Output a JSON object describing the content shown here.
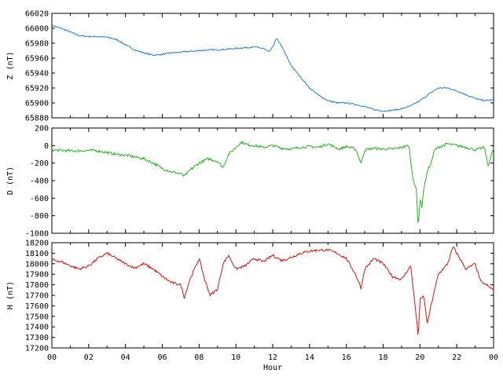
{
  "chart_data": [
    {
      "type": "line",
      "ylabel": "Z (nT)",
      "ylim": [
        65880,
        66020
      ],
      "yticks": [
        65880,
        65900,
        65920,
        65940,
        65960,
        65980,
        66000,
        66020
      ],
      "xlim": [
        0,
        24
      ],
      "color": "#1f7fdc",
      "series": [
        {
          "x": [
            0,
            0.5,
            1,
            1.5,
            2,
            2.5,
            3,
            3.5,
            4,
            4.5,
            5,
            5.5,
            6,
            6.5,
            7,
            7.5,
            8,
            8.5,
            9,
            9.5,
            10,
            10.5,
            11,
            11.5,
            11.8,
            12,
            12.2,
            12.4,
            12.7,
            13,
            13.5,
            14,
            14.5,
            15,
            15.5,
            16,
            16.5,
            17,
            17.5,
            18,
            18.5,
            19,
            19.5,
            20,
            20.5,
            21,
            21.5,
            22,
            22.5,
            23,
            23.5,
            24
          ],
          "values": [
            66004,
            66000,
            65995,
            65990,
            65989,
            65989,
            65988,
            65985,
            65978,
            65971,
            65967,
            65964,
            65965,
            65967,
            65968,
            65969,
            65970,
            65971,
            65971,
            65972,
            65973,
            65974,
            65975,
            65973,
            65968,
            65975,
            65986,
            65980,
            65965,
            65950,
            65935,
            65920,
            65910,
            65903,
            65900,
            65900,
            65898,
            65895,
            65891,
            65889,
            65890,
            65892,
            65896,
            65903,
            65912,
            65920,
            65920,
            65916,
            65911,
            65906,
            65903,
            65904
          ]
        }
      ]
    },
    {
      "type": "line",
      "ylabel": "D (nT)",
      "ylim": [
        -1000,
        200
      ],
      "yticks": [
        -1000,
        -800,
        -600,
        -400,
        -200,
        0,
        200
      ],
      "xlim": [
        0,
        24
      ],
      "color": "#22b81e",
      "series": [
        {
          "x": [
            0,
            0.5,
            1,
            1.5,
            2,
            2.5,
            3,
            3.5,
            4,
            4.5,
            5,
            5.5,
            6,
            6.5,
            7,
            7.2,
            7.5,
            8,
            8.5,
            9,
            9.3,
            9.6,
            10,
            10.3,
            10.6,
            11,
            11.5,
            12,
            12.5,
            13,
            13.5,
            14,
            14.5,
            15,
            15.3,
            15.6,
            16,
            16.5,
            16.8,
            17,
            17.5,
            18,
            18.5,
            19,
            19.4,
            19.6,
            19.8,
            19.9,
            20,
            20.1,
            20.2,
            20.4,
            20.6,
            20.8,
            21,
            21.5,
            22,
            22.5,
            23,
            23.5,
            23.7,
            24
          ],
          "values": [
            -50,
            -55,
            -60,
            -60,
            -55,
            -60,
            -80,
            -100,
            -110,
            -130,
            -150,
            -200,
            -260,
            -300,
            -320,
            -350,
            -280,
            -200,
            -150,
            -180,
            -250,
            -100,
            -20,
            40,
            10,
            0,
            -20,
            0,
            -30,
            -40,
            -20,
            -10,
            -20,
            20,
            -10,
            -40,
            -10,
            -40,
            -200,
            -50,
            -30,
            -40,
            -40,
            -20,
            0,
            -350,
            -500,
            -940,
            -600,
            -700,
            -500,
            -300,
            -200,
            -50,
            -20,
            20,
            0,
            -20,
            -50,
            -20,
            -230,
            -30
          ]
        }
      ]
    },
    {
      "type": "line",
      "ylabel": "H (nT)",
      "xlabel": "Hour",
      "ylim": [
        17200,
        18200
      ],
      "yticks": [
        17200,
        17300,
        17400,
        17500,
        17600,
        17700,
        17800,
        17900,
        18000,
        18100,
        18200
      ],
      "xlim": [
        0,
        24
      ],
      "xticks": [
        "00",
        "02",
        "04",
        "06",
        "08",
        "10",
        "12",
        "14",
        "16",
        "18",
        "20",
        "22",
        "00"
      ],
      "color": "#dc1414",
      "series": [
        {
          "x": [
            0,
            0.5,
            1,
            1.5,
            2,
            2.5,
            3,
            3.5,
            4,
            4.5,
            5,
            5.5,
            6,
            6.5,
            7,
            7.2,
            7.5,
            8,
            8.3,
            8.6,
            9,
            9.3,
            9.6,
            10,
            10.5,
            11,
            11.5,
            12,
            12.5,
            13,
            13.5,
            14,
            14.5,
            15,
            15.5,
            16,
            16.5,
            16.8,
            17,
            17.5,
            18,
            18.5,
            19,
            19.5,
            19.8,
            19.9,
            20,
            20.2,
            20.4,
            20.6,
            21,
            21.5,
            21.8,
            22,
            22.5,
            23,
            23.3,
            23.6,
            24
          ],
          "values": [
            18040,
            18020,
            17980,
            17950,
            17980,
            18050,
            18100,
            18050,
            18000,
            17960,
            18000,
            17950,
            17880,
            17820,
            17800,
            17680,
            17850,
            18050,
            17850,
            17700,
            17760,
            18000,
            18080,
            17950,
            17980,
            18050,
            18020,
            18080,
            18030,
            18060,
            18100,
            18120,
            18130,
            18130,
            18100,
            18050,
            17900,
            17770,
            17950,
            18050,
            18000,
            17880,
            17850,
            17980,
            17500,
            17300,
            17650,
            17700,
            17430,
            17600,
            17900,
            18000,
            18160,
            18100,
            17950,
            18000,
            17830,
            17800,
            17750
          ]
        }
      ]
    }
  ]
}
